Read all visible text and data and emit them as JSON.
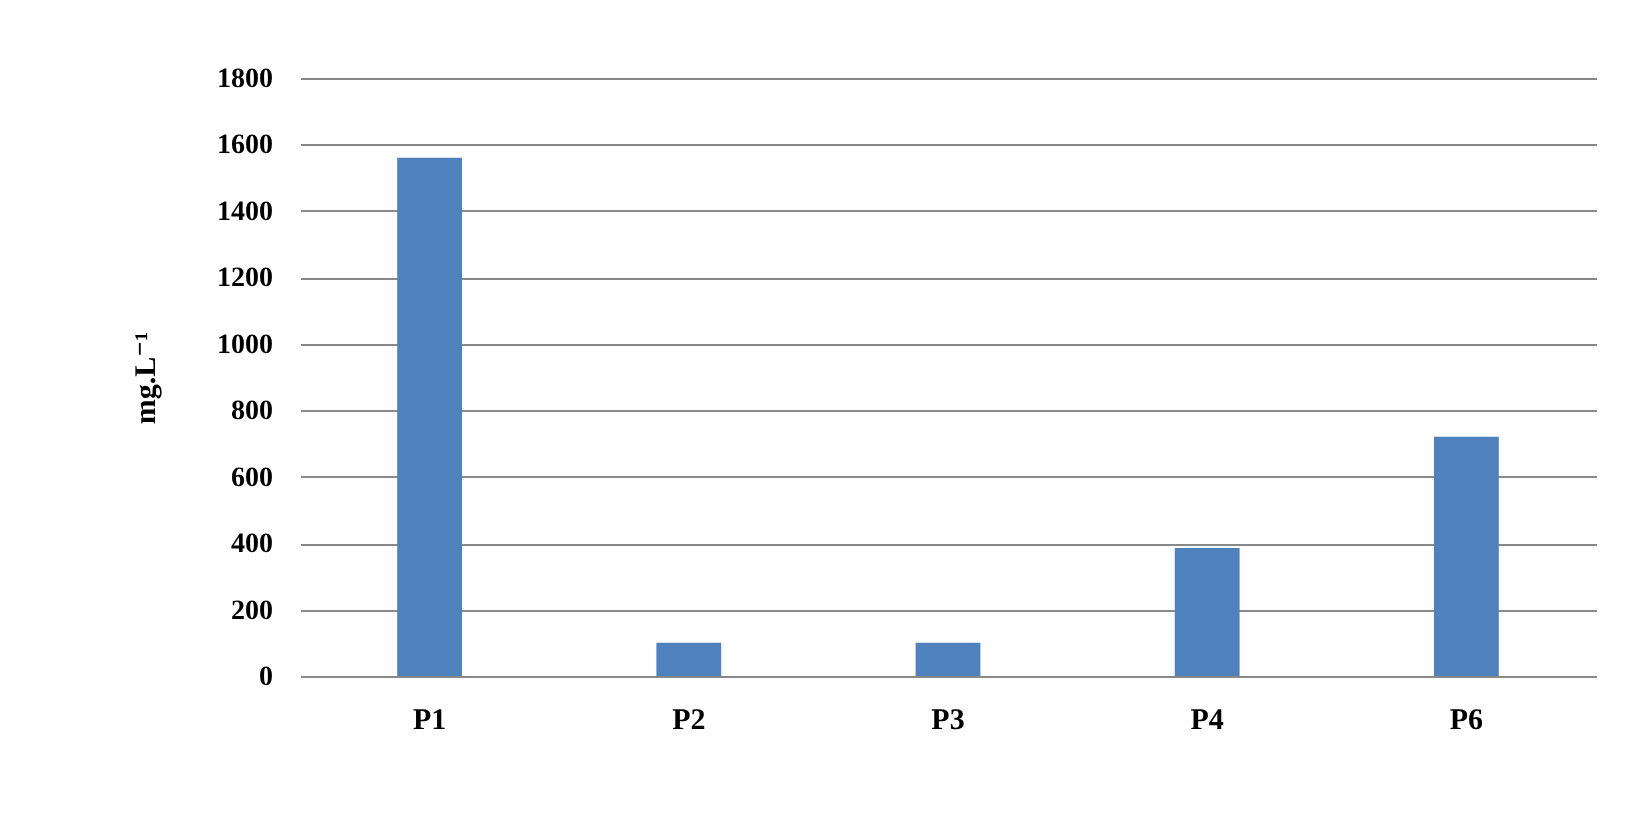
{
  "chart_data": {
    "type": "bar",
    "ylabel": "mg.L⁻¹",
    "categories": [
      "P1",
      "P2",
      "P3",
      "P4",
      "P6"
    ],
    "series": [
      {
        "color": "#4f81bd",
        "values": [
          1560,
          100,
          100,
          385,
          720
        ]
      }
    ],
    "ylim": [
      0,
      1800
    ],
    "yticks": [
      0,
      200,
      400,
      600,
      800,
      1000,
      1200,
      1400,
      1600,
      1800
    ],
    "grid": "y",
    "legend": false
  }
}
